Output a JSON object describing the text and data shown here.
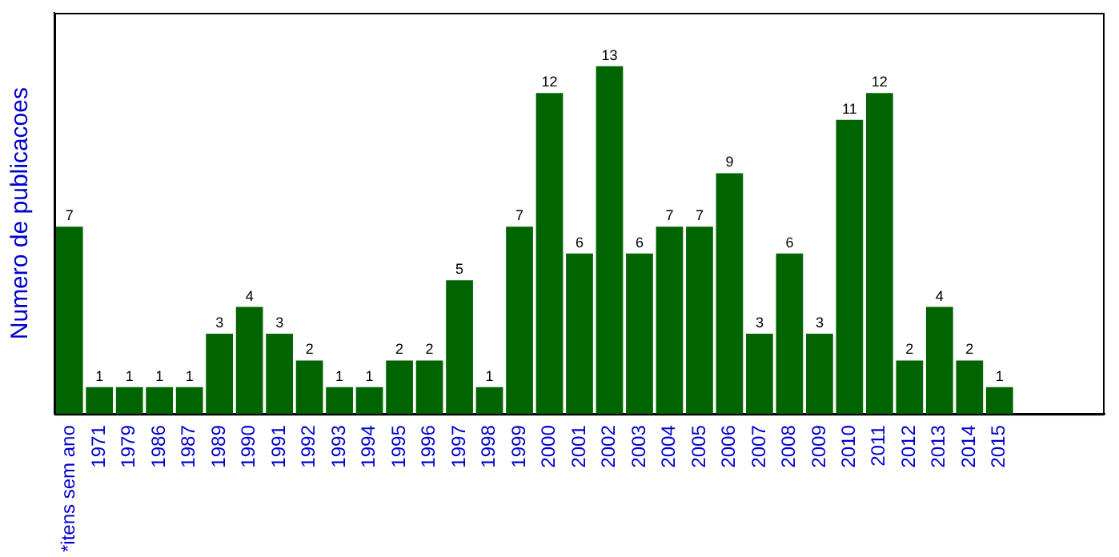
{
  "chart_data": {
    "type": "bar",
    "ylabel": "Numero de publicacoes",
    "categories": [
      "*itens sem ano",
      "1971",
      "1979",
      "1986",
      "1987",
      "1989",
      "1990",
      "1991",
      "1992",
      "1993",
      "1994",
      "1995",
      "1996",
      "1997",
      "1998",
      "1999",
      "2000",
      "2001",
      "2002",
      "2003",
      "2004",
      "2005",
      "2006",
      "2007",
      "2008",
      "2009",
      "2010",
      "2011",
      "2012",
      "2013",
      "2014",
      "2015",
      null,
      null,
      null
    ],
    "values": [
      7,
      1,
      1,
      1,
      1,
      3,
      4,
      3,
      2,
      1,
      1,
      2,
      2,
      5,
      1,
      7,
      12,
      6,
      13,
      6,
      7,
      7,
      9,
      3,
      6,
      3,
      11,
      12,
      2,
      4,
      2,
      1,
      null,
      null,
      null
    ],
    "color": "#006400",
    "ylim": [
      0,
      15
    ],
    "data_labels": true,
    "tick_labels": "x",
    "grid": false,
    "legend": false
  }
}
